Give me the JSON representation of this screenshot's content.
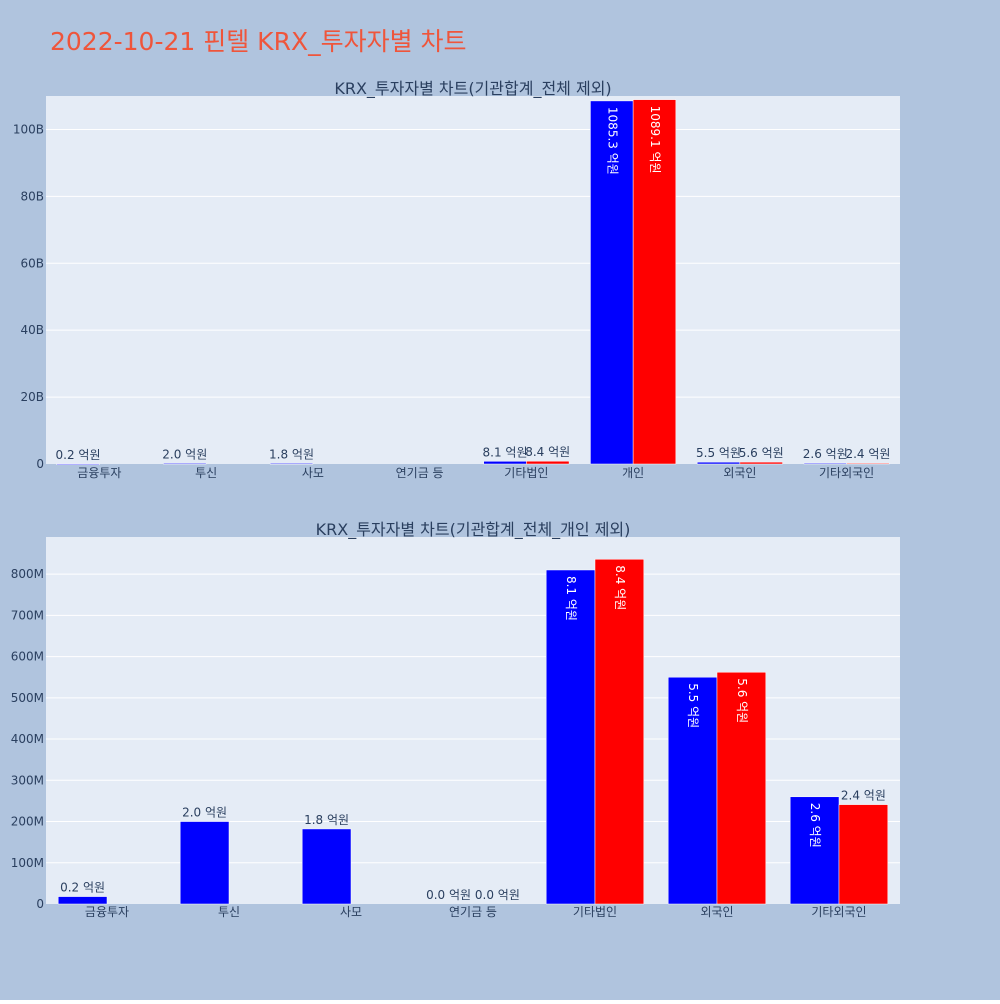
{
  "page": {
    "title": "2022-10-21 핀텔 KRX_투자자별 차트",
    "background": "#B0C4DE",
    "title_color": "#EF553B",
    "plot_background": "#E5ECF6",
    "grid_color": "#FFFFFF",
    "text_color": "#2A3F5F"
  },
  "chart_data": [
    {
      "type": "bar",
      "title": "KRX_투자자별 차트(기관합계_전체 제외)",
      "categories": [
        "금융투자",
        "투신",
        "사모",
        "연기금 등",
        "기타법인",
        "개인",
        "외국인",
        "기타외국인"
      ],
      "ylim": [
        0,
        110000000000
      ],
      "yticks": [
        0,
        20000000000,
        40000000000,
        60000000000,
        80000000000,
        100000000000
      ],
      "ytick_labels": [
        "0",
        "20B",
        "40B",
        "60B",
        "80B",
        "100B"
      ],
      "series": [
        {
          "color": "#0000FF",
          "values": [
            20000000,
            200000000,
            180000000,
            0,
            810000000,
            108530000000,
            550000000,
            260000000
          ],
          "labels": [
            "0.2 억원",
            "2.0 억원",
            "1.8 억원",
            "",
            "8.1 억원",
            "1085.3 억원",
            "5.5 억원",
            "2.6 억원"
          ]
        },
        {
          "color": "#FF0000",
          "values": [
            0,
            0,
            0,
            0,
            840000000,
            108910000000,
            560000000,
            240000000
          ],
          "labels": [
            "",
            "",
            "",
            "",
            "8.4 억원",
            "1089.1 억원",
            "5.6 억원",
            "2.4 억원"
          ]
        }
      ],
      "grid": true
    },
    {
      "type": "bar",
      "title": "KRX_투자자별 차트(기관합계_전체_개인 제외)",
      "categories": [
        "금융투자",
        "투신",
        "사모",
        "연기금 등",
        "기타법인",
        "외국인",
        "기타외국인"
      ],
      "ylim": [
        0,
        890000000
      ],
      "yticks": [
        0,
        100000000,
        200000000,
        300000000,
        400000000,
        500000000,
        600000000,
        700000000,
        800000000
      ],
      "ytick_labels": [
        "0",
        "100M",
        "200M",
        "300M",
        "400M",
        "500M",
        "600M",
        "700M",
        "800M"
      ],
      "series": [
        {
          "color": "#0000FF",
          "values": [
            18000000,
            200000000,
            182000000,
            0,
            810000000,
            550000000,
            260000000
          ],
          "labels": [
            "0.2 억원",
            "2.0 억원",
            "1.8 억원",
            "0.0 억원",
            "8.1 억원",
            "5.5 억원",
            "2.6 억원"
          ]
        },
        {
          "color": "#FF0000",
          "values": [
            0,
            0,
            0,
            0,
            836000000,
            562000000,
            241000000
          ],
          "labels": [
            "",
            "",
            "",
            "0.0 억원",
            "8.4 억원",
            "5.6 억원",
            "2.4 억원"
          ]
        }
      ],
      "grid": true
    }
  ]
}
